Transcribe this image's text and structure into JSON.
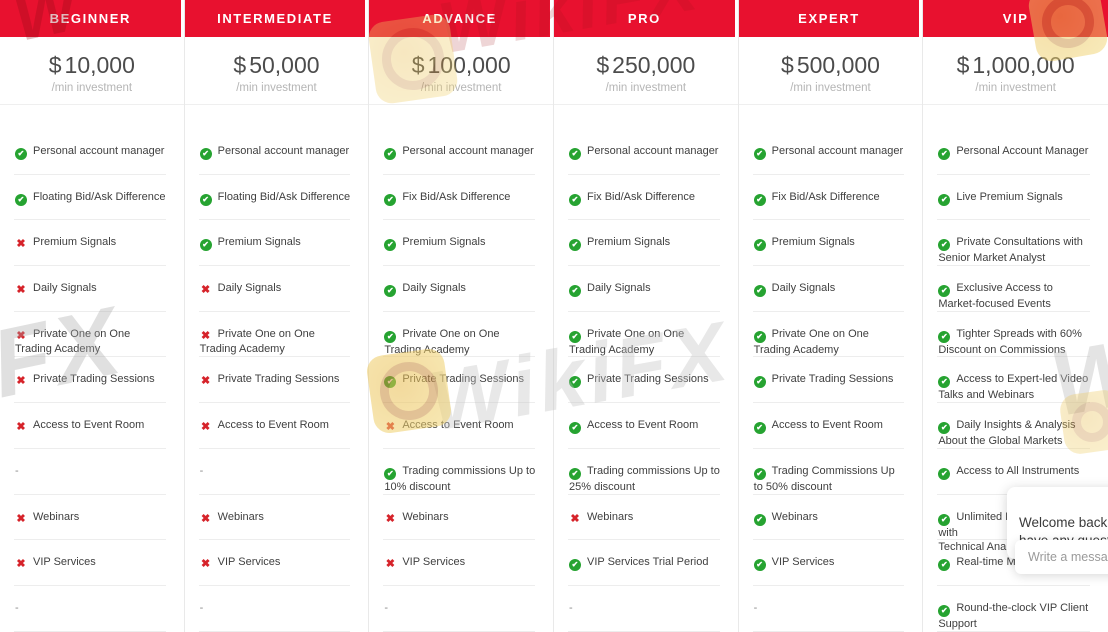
{
  "columns": [
    {
      "tier": "BEGINNER",
      "currency": "$",
      "price": "10,000",
      "period": "/min investment",
      "features": [
        {
          "status": "check",
          "text": "Personal account manager"
        },
        {
          "status": "check",
          "text": "Floating Bid/Ask Difference"
        },
        {
          "status": "cross",
          "text": "Premium Signals"
        },
        {
          "status": "cross",
          "text": "Daily Signals"
        },
        {
          "status": "cross",
          "text": "Private One on One Trading Academy"
        },
        {
          "status": "cross",
          "text": "Private Trading Sessions"
        },
        {
          "status": "cross",
          "text": "Access to Event Room"
        },
        {
          "status": "dash",
          "text": "-"
        },
        {
          "status": "cross",
          "text": "Webinars"
        },
        {
          "status": "cross",
          "text": "VIP Services"
        },
        {
          "status": "dash",
          "text": "-"
        }
      ]
    },
    {
      "tier": "INTERMEDIATE",
      "currency": "$",
      "price": "50,000",
      "period": "/min investment",
      "features": [
        {
          "status": "check",
          "text": "Personal account manager"
        },
        {
          "status": "check",
          "text": "Floating Bid/Ask Difference"
        },
        {
          "status": "check",
          "text": "Premium Signals"
        },
        {
          "status": "cross",
          "text": "Daily Signals"
        },
        {
          "status": "cross",
          "text": "Private One on One Trading Academy"
        },
        {
          "status": "cross",
          "text": "Private Trading Sessions"
        },
        {
          "status": "cross",
          "text": "Access to Event Room"
        },
        {
          "status": "dash",
          "text": "-"
        },
        {
          "status": "cross",
          "text": "Webinars"
        },
        {
          "status": "cross",
          "text": "VIP Services"
        },
        {
          "status": "dash",
          "text": "-"
        }
      ]
    },
    {
      "tier": "ADVANCE",
      "currency": "$",
      "price": "100,000",
      "period": "/min investment",
      "features": [
        {
          "status": "check",
          "text": "Personal account manager"
        },
        {
          "status": "check",
          "text": "Fix Bid/Ask Difference"
        },
        {
          "status": "check",
          "text": "Premium Signals"
        },
        {
          "status": "check",
          "text": "Daily Signals"
        },
        {
          "status": "check",
          "text": "Private One on One Trading Academy"
        },
        {
          "status": "check",
          "text": "Private Trading Sessions"
        },
        {
          "status": "cross",
          "text": "Access to Event Room"
        },
        {
          "status": "check",
          "text": "Trading commissions Up to 10% discount"
        },
        {
          "status": "cross",
          "text": "Webinars"
        },
        {
          "status": "cross",
          "text": "VIP Services"
        },
        {
          "status": "dash",
          "text": "-"
        }
      ]
    },
    {
      "tier": "PRO",
      "currency": "$",
      "price": "250,000",
      "period": "/min investment",
      "features": [
        {
          "status": "check",
          "text": "Personal account manager"
        },
        {
          "status": "check",
          "text": "Fix Bid/Ask Difference"
        },
        {
          "status": "check",
          "text": "Premium Signals"
        },
        {
          "status": "check",
          "text": "Daily Signals"
        },
        {
          "status": "check",
          "text": "Private One on One Trading Academy"
        },
        {
          "status": "check",
          "text": "Private Trading Sessions"
        },
        {
          "status": "check",
          "text": "Access to Event Room"
        },
        {
          "status": "check",
          "text": "Trading commissions Up to 25% discount"
        },
        {
          "status": "cross",
          "text": "Webinars"
        },
        {
          "status": "check",
          "text": "VIP Services Trial Period"
        },
        {
          "status": "dash",
          "text": "-"
        }
      ]
    },
    {
      "tier": "EXPERT",
      "currency": "$",
      "price": "500,000",
      "period": "/min investment",
      "features": [
        {
          "status": "check",
          "text": "Personal account manager"
        },
        {
          "status": "check",
          "text": "Fix Bid/Ask Difference"
        },
        {
          "status": "check",
          "text": "Premium Signals"
        },
        {
          "status": "check",
          "text": "Daily Signals"
        },
        {
          "status": "check",
          "text": "Private One on One Trading Academy"
        },
        {
          "status": "check",
          "text": "Private Trading Sessions"
        },
        {
          "status": "check",
          "text": "Access to Event Room"
        },
        {
          "status": "check",
          "text": "Trading Commissions Up to 50% discount"
        },
        {
          "status": "check",
          "text": "Webinars"
        },
        {
          "status": "check",
          "text": "VIP Services"
        },
        {
          "status": "dash",
          "text": "-"
        }
      ]
    },
    {
      "tier": "VIP",
      "currency": "$",
      "price": "1,000,000",
      "period": "/min investment",
      "features": [
        {
          "status": "check",
          "text": "Personal Account Manager"
        },
        {
          "status": "check",
          "text": "Live Premium Signals"
        },
        {
          "status": "check",
          "text": "Private Consultations with Senior Market Analyst"
        },
        {
          "status": "check",
          "text": "Exclusive Access to Market-focused Events"
        },
        {
          "status": "check",
          "text": "Tighter Spreads with 60% Discount on Commissions"
        },
        {
          "status": "check",
          "text": "Access to Expert-led Video Talks and Webinars"
        },
        {
          "status": "check",
          "text": "Daily Insights & Analysis About the Global Markets"
        },
        {
          "status": "check",
          "text": "Access to All Instruments"
        },
        {
          "status": "check",
          "text": "Unlimited Live Sessions with\nTechnical Analysts"
        },
        {
          "status": "check",
          "text": "Real-time Market Updates"
        },
        {
          "status": "check",
          "text": "Round-the-clock VIP Client Support"
        }
      ]
    }
  ],
  "chat": {
    "message": "Welcome back, let us know if you\nhave any questions.",
    "input_placeholder": "Write a message..."
  },
  "watermark": {
    "brand": "WikiFX",
    "fx": "FX",
    "w": "W"
  },
  "colors": {
    "header_red": "#e8112f",
    "check_green": "#26a331",
    "cross_red": "#d6232a"
  }
}
